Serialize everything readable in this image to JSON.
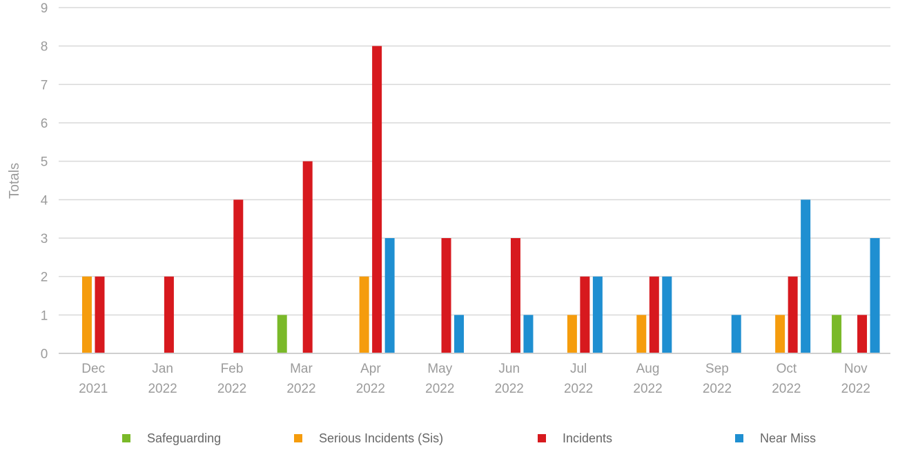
{
  "chart_data": {
    "type": "bar",
    "ylabel": "Totals",
    "xlabel": "",
    "ylim": [
      0,
      9
    ],
    "yticks": [
      0,
      1,
      2,
      3,
      4,
      5,
      6,
      7,
      8,
      9
    ],
    "grid": true,
    "legend_position": "bottom",
    "categories": [
      {
        "month": "Dec",
        "year": "2021"
      },
      {
        "month": "Jan",
        "year": "2022"
      },
      {
        "month": "Feb",
        "year": "2022"
      },
      {
        "month": "Mar",
        "year": "2022"
      },
      {
        "month": "Apr",
        "year": "2022"
      },
      {
        "month": "May",
        "year": "2022"
      },
      {
        "month": "Jun",
        "year": "2022"
      },
      {
        "month": "Jul",
        "year": "2022"
      },
      {
        "month": "Aug",
        "year": "2022"
      },
      {
        "month": "Sep",
        "year": "2022"
      },
      {
        "month": "Oct",
        "year": "2022"
      },
      {
        "month": "Nov",
        "year": "2022"
      }
    ],
    "series": [
      {
        "name": "Safeguarding",
        "color": "#7ab929",
        "values": [
          0,
          0,
          0,
          1,
          0,
          0,
          0,
          0,
          0,
          0,
          0,
          1
        ]
      },
      {
        "name": "Serious Incidents (Sis)",
        "color": "#f59c0d",
        "values": [
          2,
          0,
          0,
          0,
          2,
          0,
          0,
          1,
          1,
          0,
          1,
          0
        ]
      },
      {
        "name": "Incidents",
        "color": "#d7191e",
        "values": [
          2,
          2,
          4,
          5,
          8,
          3,
          3,
          2,
          2,
          0,
          2,
          1
        ]
      },
      {
        "name": "Near Miss",
        "color": "#1f8fd1",
        "values": [
          0,
          0,
          0,
          0,
          3,
          1,
          1,
          2,
          2,
          1,
          4,
          3
        ]
      }
    ]
  }
}
